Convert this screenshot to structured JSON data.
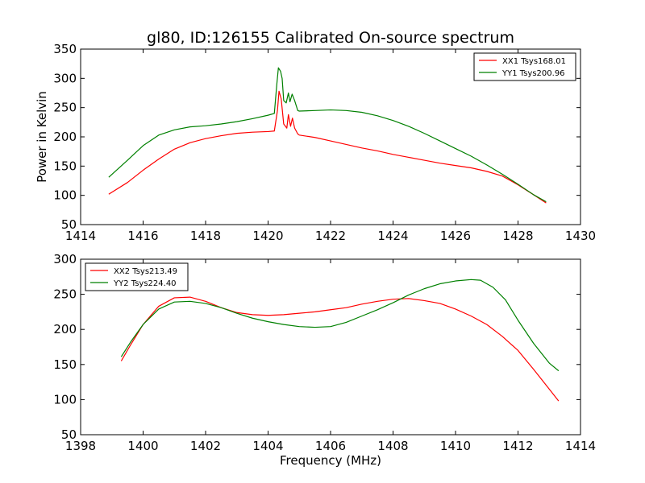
{
  "title": "gl80, ID:126155 Calibrated On-source spectrum",
  "chart_data": [
    {
      "type": "line",
      "ylabel": "Power in Kelvin",
      "xlabel": "",
      "xlim": [
        1414,
        1430
      ],
      "ylim": [
        50,
        350
      ],
      "xticks": [
        1414,
        1416,
        1418,
        1420,
        1422,
        1424,
        1426,
        1428,
        1430
      ],
      "yticks": [
        50,
        100,
        150,
        200,
        250,
        300,
        350
      ],
      "legend_position": "top-right",
      "series": [
        {
          "name": "XX1 Tsys168.01",
          "color": "#ff0000",
          "points": [
            [
              1414.9,
              102
            ],
            [
              1415.5,
              122
            ],
            [
              1416.0,
              143
            ],
            [
              1416.5,
              162
            ],
            [
              1417.0,
              179
            ],
            [
              1417.5,
              190
            ],
            [
              1418.0,
              197
            ],
            [
              1418.5,
              202
            ],
            [
              1419.0,
              206
            ],
            [
              1419.5,
              208
            ],
            [
              1420.0,
              209
            ],
            [
              1420.2,
              210
            ],
            [
              1420.3,
              245
            ],
            [
              1420.35,
              278
            ],
            [
              1420.42,
              265
            ],
            [
              1420.5,
              222
            ],
            [
              1420.6,
              215
            ],
            [
              1420.65,
              238
            ],
            [
              1420.72,
              218
            ],
            [
              1420.78,
              232
            ],
            [
              1420.85,
              215
            ],
            [
              1420.95,
              205
            ],
            [
              1421.0,
              203
            ],
            [
              1421.5,
              199
            ],
            [
              1422.0,
              193
            ],
            [
              1422.5,
              187
            ],
            [
              1423.0,
              181
            ],
            [
              1423.5,
              176
            ],
            [
              1424.0,
              170
            ],
            [
              1424.5,
              165
            ],
            [
              1425.0,
              160
            ],
            [
              1425.5,
              155
            ],
            [
              1426.0,
              151
            ],
            [
              1426.5,
              147
            ],
            [
              1427.0,
              141
            ],
            [
              1427.5,
              133
            ],
            [
              1428.0,
              118
            ],
            [
              1428.5,
              101
            ],
            [
              1428.9,
              87
            ]
          ]
        },
        {
          "name": "YY1 Tsys200.96",
          "color": "#008000",
          "points": [
            [
              1414.9,
              131
            ],
            [
              1415.5,
              160
            ],
            [
              1416.0,
              185
            ],
            [
              1416.5,
              203
            ],
            [
              1417.0,
              212
            ],
            [
              1417.5,
              217
            ],
            [
              1418.0,
              219
            ],
            [
              1418.5,
              222
            ],
            [
              1419.0,
              226
            ],
            [
              1419.5,
              231
            ],
            [
              1420.0,
              237
            ],
            [
              1420.2,
              240
            ],
            [
              1420.28,
              290
            ],
            [
              1420.33,
              318
            ],
            [
              1420.4,
              312
            ],
            [
              1420.45,
              300
            ],
            [
              1420.5,
              262
            ],
            [
              1420.58,
              258
            ],
            [
              1420.65,
              275
            ],
            [
              1420.7,
              260
            ],
            [
              1420.77,
              273
            ],
            [
              1420.85,
              262
            ],
            [
              1420.95,
              245
            ],
            [
              1421.0,
              244
            ],
            [
              1421.5,
              245
            ],
            [
              1422.0,
              246
            ],
            [
              1422.5,
              245
            ],
            [
              1423.0,
              242
            ],
            [
              1423.5,
              236
            ],
            [
              1424.0,
              228
            ],
            [
              1424.5,
              218
            ],
            [
              1425.0,
              206
            ],
            [
              1425.5,
              193
            ],
            [
              1426.0,
              180
            ],
            [
              1426.5,
              167
            ],
            [
              1427.0,
              152
            ],
            [
              1427.5,
              136
            ],
            [
              1428.0,
              119
            ],
            [
              1428.5,
              101
            ],
            [
              1428.9,
              89
            ]
          ]
        }
      ]
    },
    {
      "type": "line",
      "ylabel": "",
      "xlabel": "Frequency (MHz)",
      "xlim": [
        1398,
        1414
      ],
      "ylim": [
        50,
        300
      ],
      "xticks": [
        1398,
        1400,
        1402,
        1404,
        1406,
        1408,
        1410,
        1412,
        1414
      ],
      "yticks": [
        50,
        100,
        150,
        200,
        250,
        300
      ],
      "legend_position": "top-left",
      "series": [
        {
          "name": "XX2 Tsys213.49",
          "color": "#ff0000",
          "points": [
            [
              1399.3,
              155
            ],
            [
              1399.6,
              178
            ],
            [
              1400.0,
              207
            ],
            [
              1400.5,
              233
            ],
            [
              1401.0,
              245
            ],
            [
              1401.5,
              246
            ],
            [
              1402.0,
              240
            ],
            [
              1402.5,
              231
            ],
            [
              1403.0,
              224
            ],
            [
              1403.5,
              221
            ],
            [
              1404.0,
              220
            ],
            [
              1404.5,
              221
            ],
            [
              1405.0,
              223
            ],
            [
              1405.5,
              225
            ],
            [
              1406.0,
              228
            ],
            [
              1406.5,
              231
            ],
            [
              1407.0,
              236
            ],
            [
              1407.5,
              240
            ],
            [
              1408.0,
              243
            ],
            [
              1408.5,
              244
            ],
            [
              1409.0,
              241
            ],
            [
              1409.5,
              237
            ],
            [
              1410.0,
              229
            ],
            [
              1410.5,
              219
            ],
            [
              1411.0,
              207
            ],
            [
              1411.5,
              190
            ],
            [
              1412.0,
              170
            ],
            [
              1412.5,
              143
            ],
            [
              1413.0,
              115
            ],
            [
              1413.3,
              98
            ]
          ]
        },
        {
          "name": "YY2 Tsys224.40",
          "color": "#008000",
          "points": [
            [
              1399.3,
              161
            ],
            [
              1399.6,
              182
            ],
            [
              1400.0,
              207
            ],
            [
              1400.5,
              229
            ],
            [
              1401.0,
              239
            ],
            [
              1401.5,
              240
            ],
            [
              1402.0,
              237
            ],
            [
              1402.5,
              231
            ],
            [
              1403.0,
              223
            ],
            [
              1403.5,
              216
            ],
            [
              1404.0,
              211
            ],
            [
              1404.5,
              207
            ],
            [
              1405.0,
              204
            ],
            [
              1405.5,
              203
            ],
            [
              1406.0,
              204
            ],
            [
              1406.5,
              210
            ],
            [
              1407.0,
              219
            ],
            [
              1407.5,
              228
            ],
            [
              1408.0,
              238
            ],
            [
              1408.5,
              249
            ],
            [
              1409.0,
              258
            ],
            [
              1409.5,
              265
            ],
            [
              1410.0,
              269
            ],
            [
              1410.5,
              271
            ],
            [
              1410.8,
              270
            ],
            [
              1411.2,
              260
            ],
            [
              1411.6,
              242
            ],
            [
              1412.0,
              213
            ],
            [
              1412.5,
              180
            ],
            [
              1413.0,
              152
            ],
            [
              1413.3,
              141
            ]
          ]
        }
      ]
    }
  ]
}
